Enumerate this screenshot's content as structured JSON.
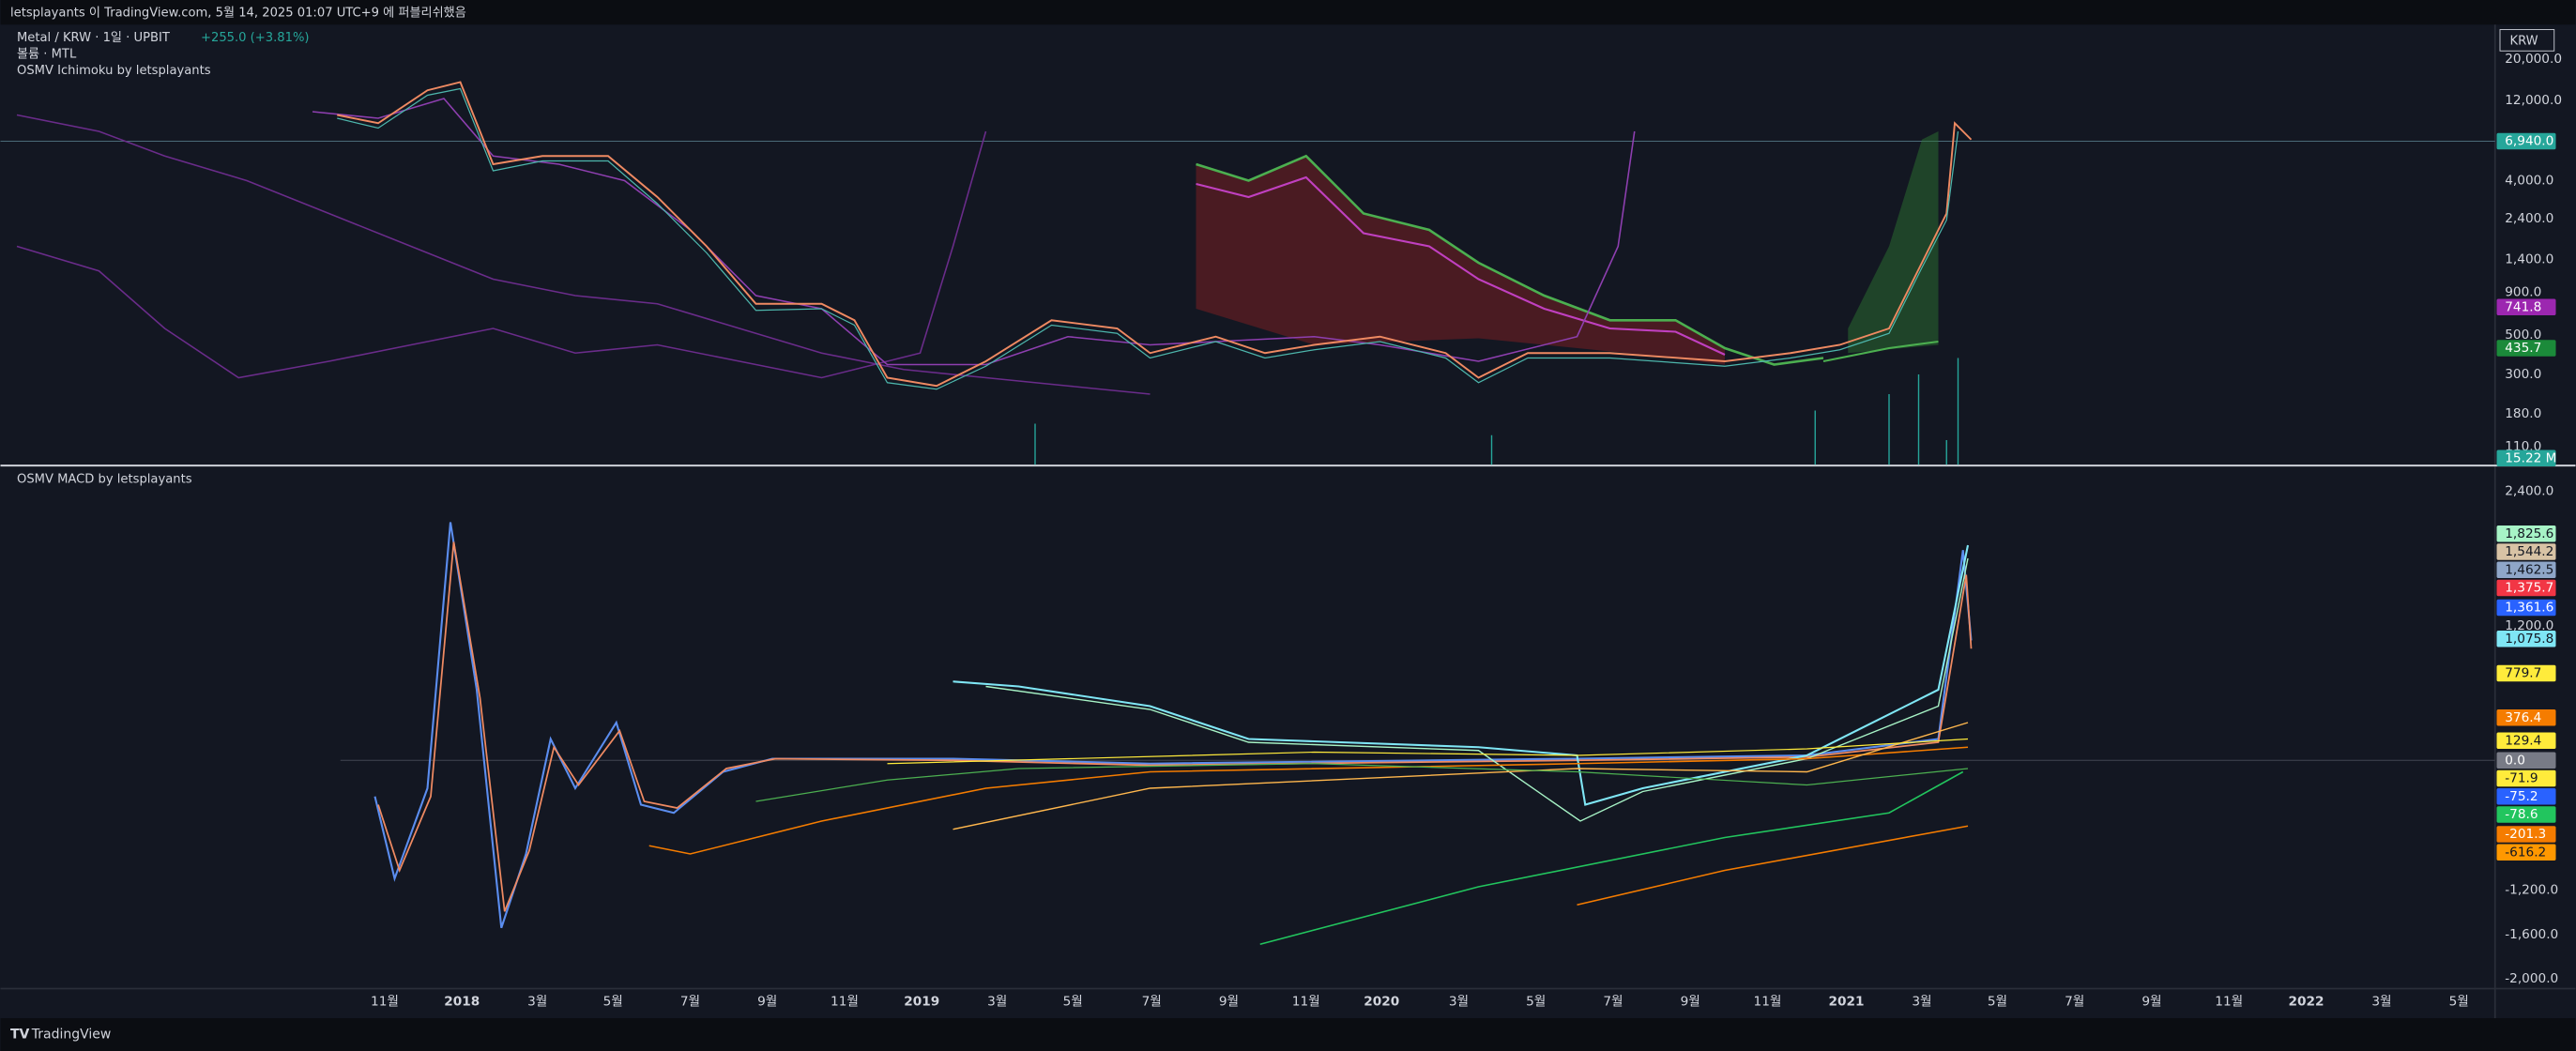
{
  "header": {
    "publish": "letsplayants 이 TradingView.com, 5월 14, 2025 01:07 UTC+9 에 퍼블리쉬했음"
  },
  "legend": {
    "symbol": "Metal / KRW · 1일 · UPBIT",
    "change": "+255.0 (+3.81%)",
    "volume": "볼륨 · MTL",
    "ichimoku": "OSMV Ichimoku by letsplayants",
    "macd": "OSMV MACD by letsplayants"
  },
  "price_axis": {
    "currency": "KRW",
    "ticks": [
      "20,000.0",
      "12,000.0",
      "4,000.0",
      "2,400.0",
      "1,400.0",
      "900.0",
      "500.0",
      "300.0",
      "180.0",
      "110.0"
    ],
    "badges": [
      {
        "label": "6,940.0",
        "color": "#26a69a"
      },
      {
        "label": "741.8",
        "color": "#9c27b0"
      },
      {
        "label": "435.7",
        "color": "#1b8a3a"
      },
      {
        "label": "15.22 M",
        "color": "#26a69a"
      }
    ]
  },
  "macd_axis": {
    "ticks": [
      "2,400.0",
      "1,200.0",
      "-1,200.0",
      "-1,600.0",
      "-2,000.0"
    ],
    "badges": [
      {
        "label": "1,825.6",
        "color": "#a7f3c6"
      },
      {
        "label": "1,544.2",
        "color": "#d8c3a5"
      },
      {
        "label": "1,462.5",
        "color": "#8fa6c8"
      },
      {
        "label": "1,375.7",
        "color": "#f23645"
      },
      {
        "label": "1,361.6",
        "color": "#2962ff"
      },
      {
        "label": "1,075.8",
        "color": "#7fe6f5"
      },
      {
        "label": "779.7",
        "color": "#ffeb3b"
      },
      {
        "label": "376.4",
        "color": "#f57c00"
      },
      {
        "label": "129.4",
        "color": "#ffeb3b"
      },
      {
        "label": "0.0",
        "color": "#787b86"
      },
      {
        "label": "-71.9",
        "color": "#ffeb3b"
      },
      {
        "label": "-75.2",
        "color": "#2962ff"
      },
      {
        "label": "-78.6",
        "color": "#22c55e"
      },
      {
        "label": "-201.3",
        "color": "#f57c00"
      },
      {
        "label": "-616.2",
        "color": "#ff9800"
      }
    ]
  },
  "time_axis": {
    "labels": [
      "11월",
      "2018",
      "3월",
      "5월",
      "7월",
      "9월",
      "11월",
      "2019",
      "3월",
      "5월",
      "7월",
      "9월",
      "11월",
      "2020",
      "3월",
      "5월",
      "7월",
      "9월",
      "11월",
      "2021",
      "3월",
      "5월",
      "7월",
      "9월",
      "11월",
      "2022",
      "3월",
      "5월"
    ]
  },
  "footer": {
    "brand": "TradingView"
  }
}
